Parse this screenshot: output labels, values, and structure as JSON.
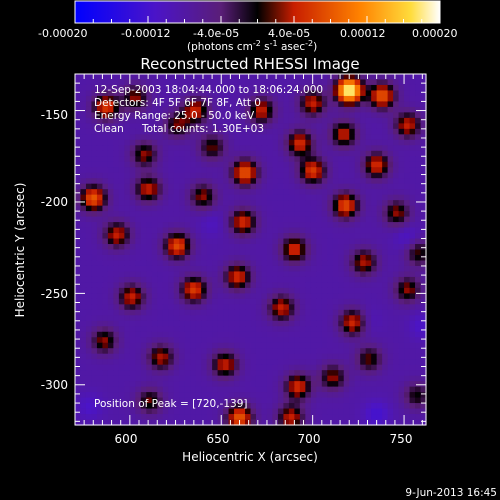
{
  "chart_data": {
    "type": "heatmap",
    "title": "Reconstructed RHESSI Image",
    "xlabel": "Heliocentric X (arcsec)",
    "ylabel": "Heliocentric Y (arcsec)",
    "xlim": [
      570,
      762
    ],
    "ylim": [
      -322,
      -130
    ],
    "xticks": [
      600,
      650,
      700,
      750
    ],
    "yticks": [
      -150,
      -200,
      -250,
      -300
    ],
    "grid": false,
    "colorbar": {
      "position": "top",
      "range": [
        -0.0002,
        0.0002
      ],
      "tick_labels": [
        "-0.00020",
        "-0.00012",
        "-4.0e-05",
        "4.0e-05",
        "0.00012",
        "0.00020"
      ],
      "label_parts": [
        "(photons cm",
        "-2",
        " s",
        "-1",
        " asec",
        "-2",
        ")"
      ]
    },
    "annotations": [
      "12-Sep-2003 18:04:44.000 to 18:06:24.000",
      "Detectors: 4F 5F 6F 7F 8F, Att 0",
      "Energy Range: 25.0 - 50.0 keV",
      "Clean",
      "Total counts: 1.30E+03",
      "Position of Peak = [720,-139]"
    ],
    "footer": "9-Jun-2013 16:45",
    "peak": [
      720,
      -139
    ],
    "peak_value": 0.0002,
    "background_level": -8e-05,
    "blob_sigma_arcsec": 5,
    "sources": [
      [
        720,
        -139,
        0.00028
      ],
      [
        738,
        -142,
        0.00016
      ],
      [
        700,
        -146,
        0.00012
      ],
      [
        587,
        -148,
        0.00014
      ],
      [
        603,
        -143,
        0.0001
      ],
      [
        636,
        -150,
        0.00012
      ],
      [
        672,
        -150,
        0.00012
      ],
      [
        626,
        -158,
        9e-05
      ],
      [
        693,
        -168,
        0.00013
      ],
      [
        717,
        -163,
        0.00012
      ],
      [
        752,
        -158,
        0.00012
      ],
      [
        608,
        -174,
        0.0001
      ],
      [
        645,
        -170,
        9e-05
      ],
      [
        663,
        -184,
        0.00016
      ],
      [
        700,
        -183,
        0.00014
      ],
      [
        735,
        -180,
        0.00013
      ],
      [
        580,
        -198,
        0.00016
      ],
      [
        610,
        -193,
        0.00012
      ],
      [
        640,
        -197,
        0.0001
      ],
      [
        662,
        -211,
        0.00013
      ],
      [
        718,
        -202,
        0.00015
      ],
      [
        746,
        -206,
        0.0001
      ],
      [
        593,
        -218,
        0.00012
      ],
      [
        626,
        -224,
        0.00015
      ],
      [
        690,
        -226,
        0.00013
      ],
      [
        728,
        -233,
        0.00011
      ],
      [
        758,
        -228,
        9e-05
      ],
      [
        601,
        -252,
        0.00012
      ],
      [
        635,
        -248,
        0.00014
      ],
      [
        659,
        -241,
        0.00013
      ],
      [
        683,
        -258,
        0.00012
      ],
      [
        722,
        -266,
        0.00013
      ],
      [
        752,
        -248,
        0.0001
      ],
      [
        586,
        -276,
        0.0001
      ],
      [
        617,
        -285,
        0.00011
      ],
      [
        652,
        -289,
        0.00012
      ],
      [
        692,
        -301,
        0.00013
      ],
      [
        711,
        -296,
        0.0001
      ],
      [
        731,
        -286,
        9e-05
      ],
      [
        757,
        -306,
        8e-05
      ],
      [
        611,
        -309,
        9e-05
      ],
      [
        660,
        -318,
        0.00016
      ],
      [
        688,
        -318,
        0.00012
      ],
      [
        645,
        -212,
        -2e-05
      ],
      [
        735,
        -316,
        -4e-05
      ],
      [
        752,
        -220,
        -3e-05
      ],
      [
        578,
        -312,
        -3e-05
      ],
      [
        730,
        -265,
        -2e-05
      ],
      [
        760,
        -268,
        -3e-05
      ]
    ]
  }
}
